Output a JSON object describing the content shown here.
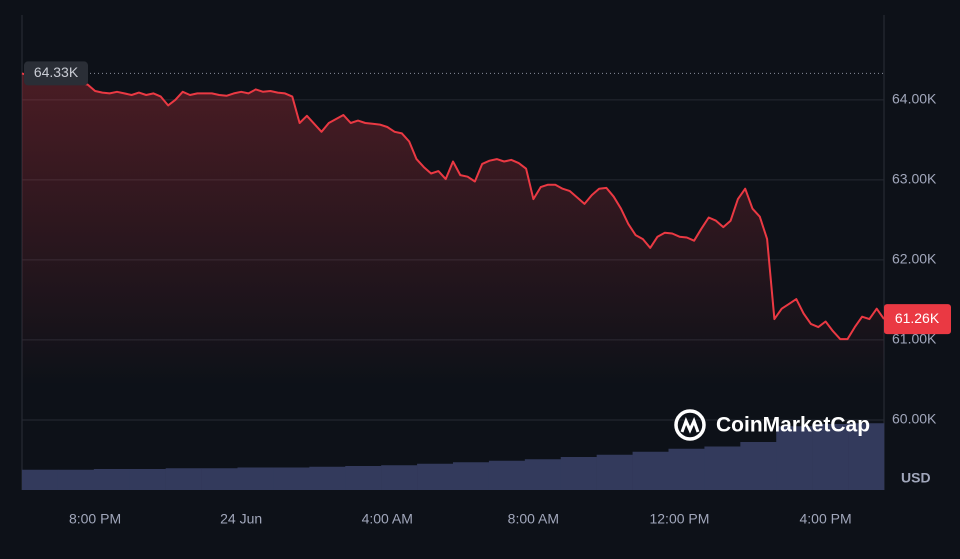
{
  "chart_data": {
    "type": "line",
    "color": "#ea3943",
    "values": [
      64330,
      64300,
      64280,
      64260,
      64250,
      64240,
      64230,
      64210,
      64210,
      64190,
      64110,
      64090,
      64080,
      64100,
      64080,
      64060,
      64090,
      64060,
      64080,
      64040,
      63930,
      64000,
      64100,
      64060,
      64080,
      64080,
      64080,
      64060,
      64050,
      64080,
      64100,
      64080,
      64130,
      64100,
      64110,
      64090,
      64080,
      64040,
      63710,
      63800,
      63700,
      63600,
      63710,
      63760,
      63810,
      63710,
      63740,
      63710,
      63700,
      63690,
      63660,
      63600,
      63580,
      63480,
      63260,
      63160,
      63080,
      63110,
      63010,
      63230,
      63060,
      63040,
      62980,
      63200,
      63240,
      63260,
      63230,
      63250,
      63210,
      63140,
      62760,
      62910,
      62940,
      62940,
      62890,
      62860,
      62780,
      62700,
      62810,
      62890,
      62900,
      62790,
      62640,
      62450,
      62310,
      62260,
      62150,
      62290,
      62340,
      62330,
      62290,
      62280,
      62240,
      62390,
      62530,
      62490,
      62410,
      62490,
      62760,
      62890,
      62640,
      62540,
      62260,
      61260,
      61390,
      61450,
      61510,
      61330,
      61200,
      61160,
      61230,
      61110,
      61010,
      61010,
      61160,
      61290,
      61260,
      61390,
      61260
    ],
    "xlim": [
      0,
      118
    ],
    "xticks": [
      {
        "value": 10,
        "label": "8:00 PM"
      },
      {
        "value": 30,
        "label": "24 Jun"
      },
      {
        "value": 50,
        "label": "4:00 AM"
      },
      {
        "value": 70,
        "label": "8:00 AM"
      },
      {
        "value": 90,
        "label": "12:00 PM"
      },
      {
        "value": 110,
        "label": "4:00 PM"
      }
    ],
    "ylim": [
      59125,
      65060
    ],
    "yticks": [
      {
        "value": 60000,
        "label": "60.00K"
      },
      {
        "value": 61000,
        "label": "61.00K"
      },
      {
        "value": 62000,
        "label": "62.00K"
      },
      {
        "value": 63000,
        "label": "63.00K"
      },
      {
        "value": 64000,
        "label": "64.00K"
      }
    ],
    "y_unit": "USD",
    "grid": true,
    "open_label": {
      "value": 64330,
      "label": "64.33K"
    },
    "last_label": {
      "value": 61260,
      "label": "61.26K"
    },
    "volume": {
      "color": "#333a5c",
      "ylim": [
        0,
        100
      ],
      "values": [
        27,
        27,
        28,
        28,
        29,
        29,
        30,
        30,
        31,
        32,
        33,
        35,
        37,
        39,
        41,
        44,
        47,
        51,
        55,
        58,
        64,
        85,
        88,
        89
      ]
    },
    "watermark": "CoinMarketCap"
  }
}
